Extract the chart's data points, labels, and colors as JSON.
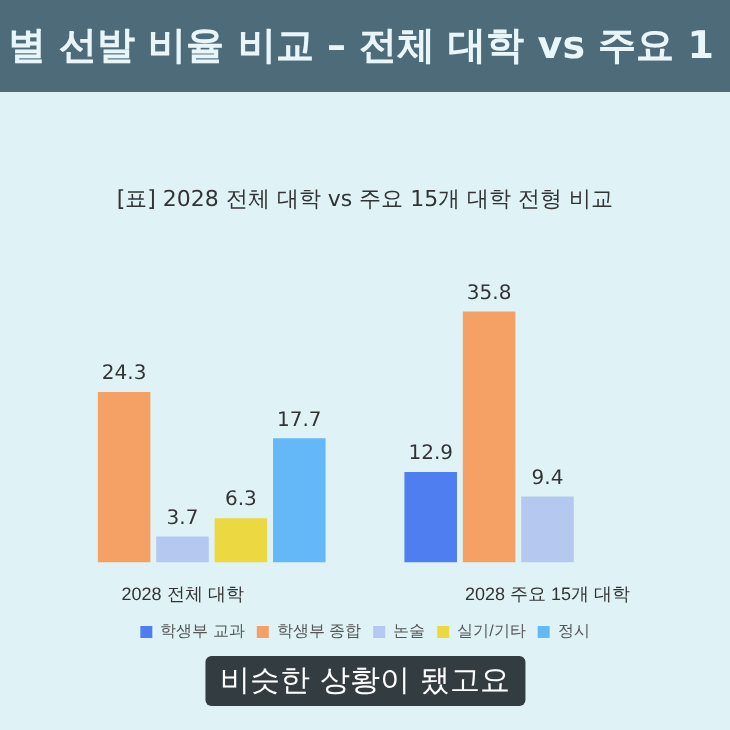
{
  "chart_data": {
    "type": "bar",
    "title": "별 선발 비율 비교 – 전체 대학 vs 주요 1",
    "subtitle": "[표] 2028 전체 대학 vs 주요 15개 대학 전형 비교",
    "categories": [
      "2028 전체 대학",
      "2028 주요 15개 대학"
    ],
    "series": [
      {
        "name": "학생부 교과",
        "color": "#4f7ef0",
        "values": [
          null,
          12.9
        ]
      },
      {
        "name": "학생부 종합",
        "color": "#f5a064",
        "values": [
          24.3,
          35.8
        ]
      },
      {
        "name": "논술",
        "color": "#b4c8f0",
        "values": [
          3.7,
          9.4
        ]
      },
      {
        "name": "실기/기타",
        "color": "#ecd840",
        "values": [
          6.3,
          null
        ]
      },
      {
        "name": "정시",
        "color": "#64b8f8",
        "values": [
          17.7,
          null
        ]
      }
    ],
    "data_labels": true,
    "legend": "bottom",
    "annotations": [
      "비슷한 상황이 됐고요"
    ]
  }
}
